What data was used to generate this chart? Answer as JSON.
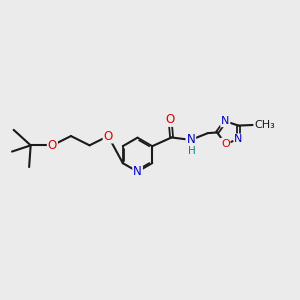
{
  "bg_color": "#ebebeb",
  "bond_color": "#1a1a1a",
  "bond_width": 1.5,
  "atom_colors": {
    "O": "#dd0000",
    "N": "#0000cc",
    "H": "#008888",
    "C": "#1a1a1a"
  },
  "font_size": 8.5,
  "fig_size": [
    3.0,
    3.0
  ],
  "dpi": 100
}
